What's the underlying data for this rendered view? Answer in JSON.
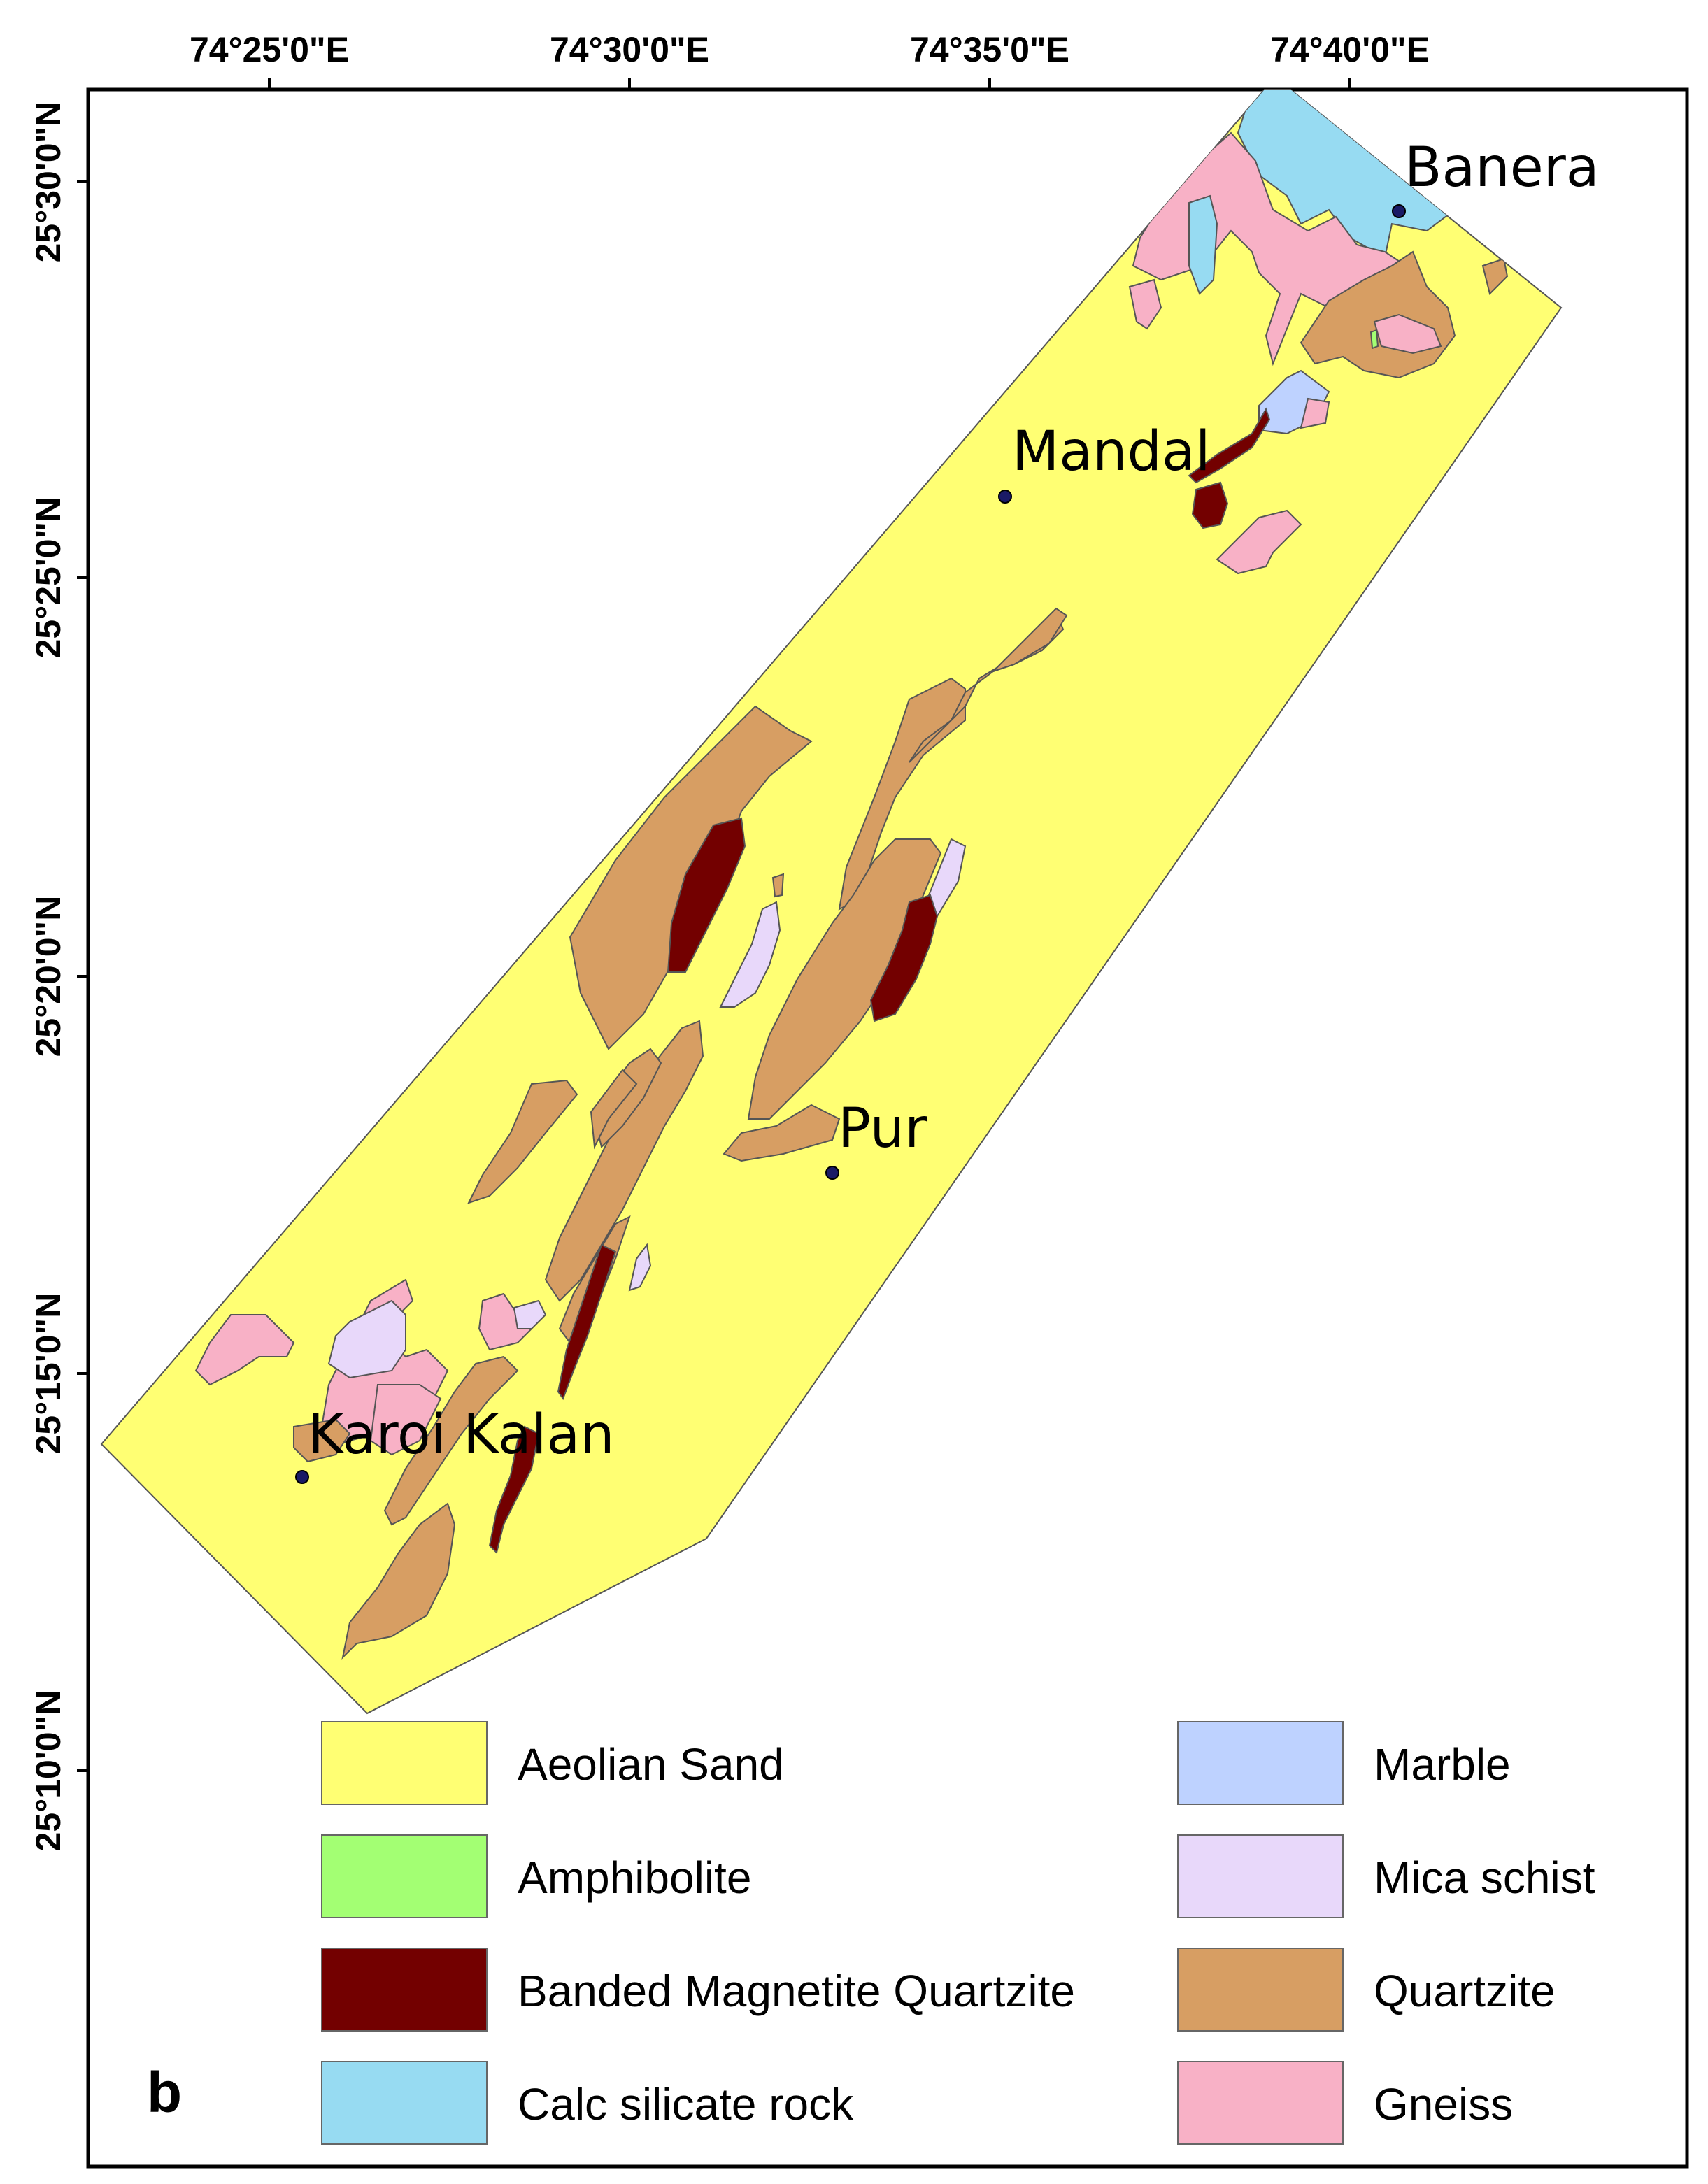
{
  "panel_label": "b",
  "longitude_labels": [
    "74°25'0\"E",
    "74°30'0\"E",
    "74°35'0\"E",
    "74°40'0\"E"
  ],
  "latitude_labels": [
    "25°30'0\"N",
    "25°25'0\"N",
    "25°20'0\"N",
    "25°15'0\"N",
    "25°10'0\"N"
  ],
  "places": [
    {
      "name": "Banera"
    },
    {
      "name": "Mandal"
    },
    {
      "name": "Pur"
    },
    {
      "name": "Karoi Kalan"
    }
  ],
  "legend": [
    {
      "label": "Aeolian Sand",
      "color": "#ffff73"
    },
    {
      "label": "Amphibolite",
      "color": "#a3ff73"
    },
    {
      "label": "Banded Magnetite Quartzite",
      "color": "#730000"
    },
    {
      "label": "Calc silicate rock",
      "color": "#97dbf2"
    },
    {
      "label": "Marble",
      "color": "#bed2ff"
    },
    {
      "label": "Mica schist",
      "color": "#e8d8fa"
    },
    {
      "label": "Quartzite",
      "color": "#d79e63"
    },
    {
      "label": "Gneiss",
      "color": "#f8b1c6"
    }
  ]
}
